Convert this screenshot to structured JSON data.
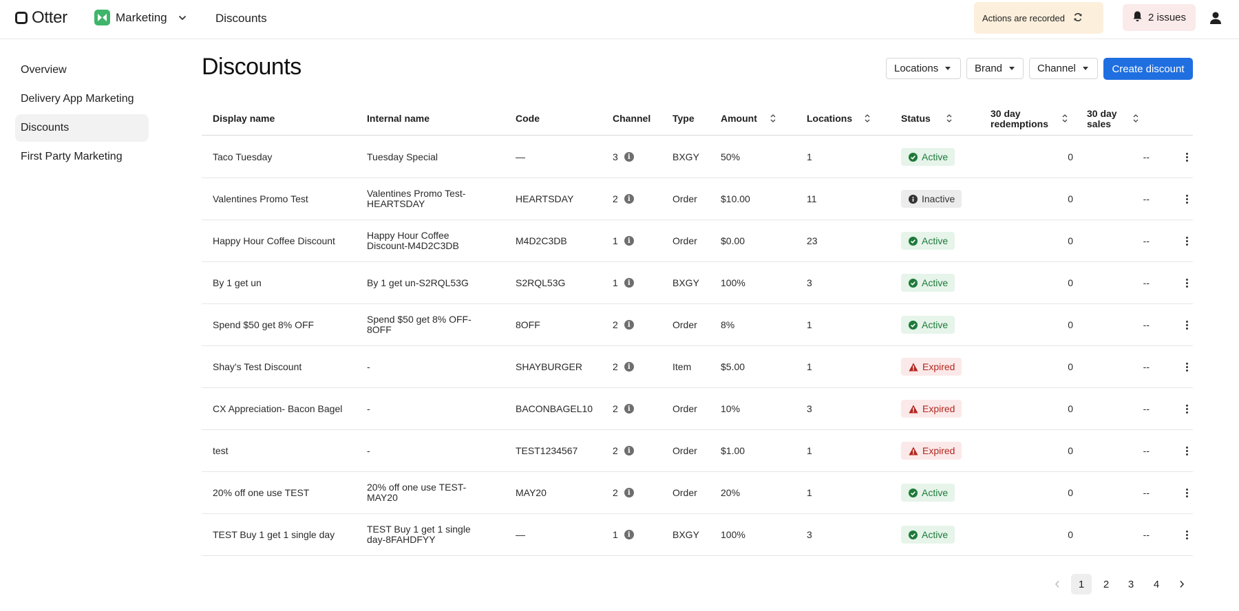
{
  "app": {
    "name": "Otter"
  },
  "workspace": {
    "name": "Marketing"
  },
  "breadcrumb": {
    "current": "Discounts"
  },
  "header": {
    "recorded_label": "Actions are recorded",
    "issues_label": "2 issues"
  },
  "sidebar": {
    "items": [
      {
        "label": "Overview",
        "active": false
      },
      {
        "label": "Delivery App Marketing",
        "active": false
      },
      {
        "label": "Discounts",
        "active": true
      },
      {
        "label": "First Party Marketing",
        "active": false
      }
    ]
  },
  "page": {
    "title": "Discounts"
  },
  "filters": {
    "locations": "Locations",
    "brand": "Brand",
    "channel": "Channel"
  },
  "actions": {
    "create_label": "Create discount"
  },
  "table": {
    "columns": {
      "display_name": "Display name",
      "internal_name": "Internal name",
      "code": "Code",
      "channel": "Channel",
      "type": "Type",
      "amount": "Amount",
      "locations": "Locations",
      "status": "Status",
      "redemptions": "30 day redemptions",
      "sales": "30 day sales"
    },
    "rows": [
      {
        "display_name": "Taco Tuesday",
        "internal_name": "Tuesday Special",
        "code": "—",
        "channel": "3",
        "type": "BXGY",
        "amount": "50%",
        "locations": "1",
        "status": "Active",
        "redemptions": "0",
        "sales": "--"
      },
      {
        "display_name": "Valentines Promo Test",
        "internal_name": "Valentines Promo Test-HEARTSDAY",
        "code": "HEARTSDAY",
        "channel": "2",
        "type": "Order",
        "amount": "$10.00",
        "locations": "11",
        "status": "Inactive",
        "redemptions": "0",
        "sales": "--"
      },
      {
        "display_name": "Happy Hour Coffee Discount",
        "internal_name": "Happy Hour Coffee Discount-M4D2C3DB",
        "code": "M4D2C3DB",
        "channel": "1",
        "type": "Order",
        "amount": "$0.00",
        "locations": "23",
        "status": "Active",
        "redemptions": "0",
        "sales": "--"
      },
      {
        "display_name": "By 1 get un",
        "internal_name": "By 1 get un-S2RQL53G",
        "code": "S2RQL53G",
        "channel": "1",
        "type": "BXGY",
        "amount": "100%",
        "locations": "3",
        "status": "Active",
        "redemptions": "0",
        "sales": "--"
      },
      {
        "display_name": "Spend $50 get 8% OFF",
        "internal_name": "Spend $50 get 8% OFF-8OFF",
        "code": "8OFF",
        "channel": "2",
        "type": "Order",
        "amount": "8%",
        "locations": "1",
        "status": "Active",
        "redemptions": "0",
        "sales": "--"
      },
      {
        "display_name": "Shay's Test Discount",
        "internal_name": "-",
        "code": "SHAYBURGER",
        "channel": "2",
        "type": "Item",
        "amount": "$5.00",
        "locations": "1",
        "status": "Expired",
        "redemptions": "0",
        "sales": "--"
      },
      {
        "display_name": "CX Appreciation- Bacon Bagel",
        "internal_name": "-",
        "code": "BACONBAGEL10",
        "channel": "2",
        "type": "Order",
        "amount": "10%",
        "locations": "3",
        "status": "Expired",
        "redemptions": "0",
        "sales": "--"
      },
      {
        "display_name": "test",
        "internal_name": "-",
        "code": "TEST1234567",
        "channel": "2",
        "type": "Order",
        "amount": "$1.00",
        "locations": "1",
        "status": "Expired",
        "redemptions": "0",
        "sales": "--"
      },
      {
        "display_name": "20% off one use TEST",
        "internal_name": "20% off one use TEST-MAY20",
        "code": "MAY20",
        "channel": "2",
        "type": "Order",
        "amount": "20%",
        "locations": "1",
        "status": "Active",
        "redemptions": "0",
        "sales": "--"
      },
      {
        "display_name": "TEST Buy 1 get 1 single day",
        "internal_name": "TEST Buy 1 get 1 single day-8FAHDFYY",
        "code": "—",
        "channel": "1",
        "type": "BXGY",
        "amount": "100%",
        "locations": "3",
        "status": "Active",
        "redemptions": "0",
        "sales": "--"
      }
    ]
  },
  "pagination": {
    "pages": [
      "1",
      "2",
      "3",
      "4"
    ],
    "current": "1"
  }
}
